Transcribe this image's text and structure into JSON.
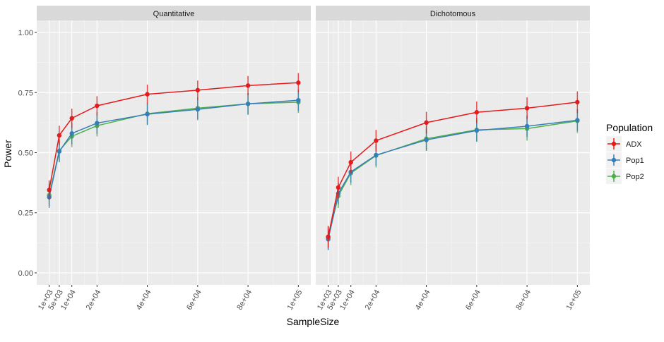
{
  "chart_data": {
    "type": "line",
    "xlabel": "SampleSize",
    "ylabel": "Power",
    "ylim": [
      -0.05,
      1.05
    ],
    "xlim": [
      -3950,
      104950
    ],
    "y_ticks": [
      0,
      0.25,
      0.5,
      0.75,
      1.0
    ],
    "y_tick_labels": [
      "0.00",
      "0.25",
      "0.50",
      "0.75",
      "1.00"
    ],
    "x": [
      1000,
      5000,
      10000,
      20000,
      40000,
      60000,
      80000,
      100000
    ],
    "x_tick_labels": [
      "1e+03",
      "5e+03",
      "1e+04",
      "2e+04",
      "4e+04",
      "6e+04",
      "8e+04",
      "1e+05"
    ],
    "grid": true,
    "legend": {
      "title": "Population",
      "placement": "right"
    },
    "colors": {
      "ADX": "#E41A1C",
      "Pop1": "#377EB8",
      "Pop2": "#4DAF4A",
      "panel_bg": "#EBEBEB",
      "strip_bg": "#D9D9D9"
    },
    "panels": [
      {
        "title": "Quantitative",
        "series": [
          {
            "name": "ADX",
            "values": [
              0.345,
              0.572,
              0.643,
              0.695,
              0.743,
              0.76,
              0.779,
              0.791
            ],
            "error": 0.04
          },
          {
            "name": "Pop1",
            "values": [
              0.315,
              0.505,
              0.58,
              0.623,
              0.66,
              0.68,
              0.703,
              0.718
            ],
            "error": 0.045
          },
          {
            "name": "Pop2",
            "values": [
              0.323,
              0.508,
              0.568,
              0.612,
              0.662,
              0.685,
              0.703,
              0.71
            ],
            "error": 0.045
          }
        ]
      },
      {
        "title": "Dichotomous",
        "series": [
          {
            "name": "ADX",
            "values": [
              0.15,
              0.355,
              0.46,
              0.55,
              0.625,
              0.668,
              0.685,
              0.71
            ],
            "error": 0.045
          },
          {
            "name": "Pop1",
            "values": [
              0.14,
              0.33,
              0.42,
              0.49,
              0.553,
              0.592,
              0.61,
              0.635
            ],
            "error": 0.045
          },
          {
            "name": "Pop2",
            "values": [
              0.145,
              0.32,
              0.415,
              0.488,
              0.558,
              0.595,
              0.6,
              0.632
            ],
            "error": 0.05
          }
        ]
      }
    ]
  }
}
